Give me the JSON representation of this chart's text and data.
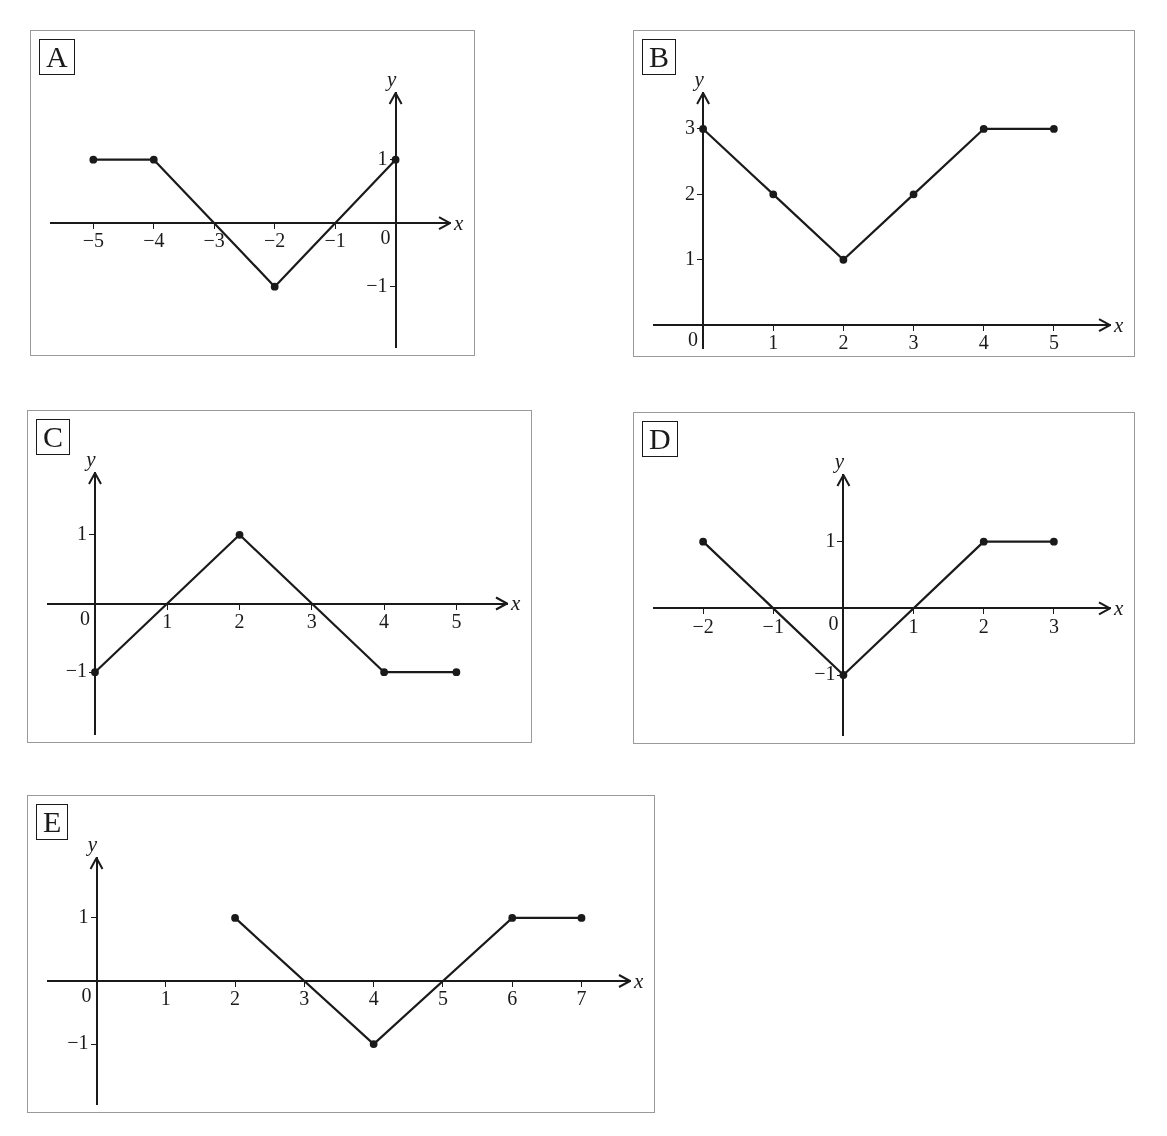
{
  "chart_data": [
    {
      "type": "line",
      "title": "A",
      "xlabel": "x",
      "ylabel": "y",
      "x": [
        -5,
        -4,
        -2,
        0
      ],
      "values": [
        1,
        1,
        -1,
        1
      ],
      "color": "#1a1a1a",
      "xlim": [
        -5.7,
        0.9
      ],
      "ylim": [
        -1.95,
        2.05
      ],
      "xticks": [
        -5,
        -4,
        -3,
        -2,
        -1,
        0
      ],
      "yticks": [
        -1,
        1
      ],
      "marker": "circle",
      "grid": false,
      "legend": false
    },
    {
      "type": "line",
      "title": "B",
      "xlabel": "x",
      "ylabel": "y",
      "x": [
        0,
        1,
        2,
        3,
        4,
        5
      ],
      "values": [
        3,
        2,
        1,
        2,
        3,
        3
      ],
      "color": "#1a1a1a",
      "xlim": [
        -0.7,
        5.8
      ],
      "ylim": [
        -0.35,
        3.55
      ],
      "xticks": [
        0,
        1,
        2,
        3,
        4,
        5
      ],
      "yticks": [
        1,
        2,
        3
      ],
      "marker": "circle",
      "grid": false,
      "legend": false
    },
    {
      "type": "line",
      "title": "C",
      "xlabel": "x",
      "ylabel": "y",
      "x": [
        0,
        2,
        4,
        5
      ],
      "values": [
        -1,
        1,
        -1,
        -1
      ],
      "color": "#1a1a1a",
      "xlim": [
        -0.65,
        5.7
      ],
      "ylim": [
        -1.9,
        1.9
      ],
      "xticks": [
        0,
        1,
        2,
        3,
        4,
        5
      ],
      "yticks": [
        -1,
        1
      ],
      "marker": "circle",
      "grid": false,
      "legend": false
    },
    {
      "type": "line",
      "title": "D",
      "xlabel": "x",
      "ylabel": "y",
      "x": [
        -2,
        0,
        2,
        3
      ],
      "values": [
        1,
        -1,
        1,
        1
      ],
      "color": "#1a1a1a",
      "xlim": [
        -2.7,
        3.8
      ],
      "ylim": [
        -1.9,
        2.0
      ],
      "xticks": [
        -2,
        -1,
        0,
        1,
        2,
        3
      ],
      "yticks": [
        -1,
        1
      ],
      "marker": "circle",
      "grid": false,
      "legend": false
    },
    {
      "type": "line",
      "title": "E",
      "xlabel": "x",
      "ylabel": "y",
      "x": [
        2,
        4,
        6,
        7
      ],
      "values": [
        1,
        -1,
        1,
        1
      ],
      "color": "#1a1a1a",
      "xlim": [
        -0.7,
        7.7
      ],
      "ylim": [
        -1.95,
        1.95
      ],
      "xticks": [
        0,
        1,
        2,
        3,
        4,
        5,
        6,
        7
      ],
      "yticks": [
        -1,
        1
      ],
      "marker": "circle",
      "grid": false,
      "legend": false
    }
  ]
}
